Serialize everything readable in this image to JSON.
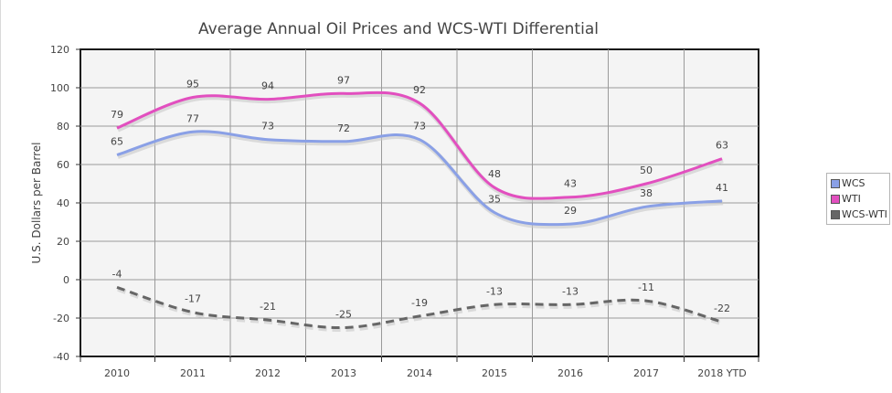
{
  "chart_data": {
    "type": "line",
    "title": "Average Annual Oil Prices and WCS-WTI Differential",
    "xlabel": "",
    "ylabel": "U.S. Dollars per Barrel",
    "categories": [
      "2010",
      "2011",
      "2012",
      "2013",
      "2014",
      "2015",
      "2016",
      "2017",
      "2018 YTD"
    ],
    "yticks": [
      "120",
      "100",
      "80",
      "60",
      "40",
      "20",
      "0",
      "-20",
      "-40"
    ],
    "ylim": [
      -40,
      120
    ],
    "grid": true,
    "legend_position": "right",
    "series": [
      {
        "name": "WCS",
        "values": [
          65,
          77,
          73,
          72,
          73,
          35,
          29,
          38,
          41
        ],
        "labels": [
          "65",
          "77",
          "73",
          "72",
          "73",
          "35",
          "29",
          "38",
          "41"
        ],
        "color": "#8aa0e6",
        "style": "solid"
      },
      {
        "name": "WTI",
        "values": [
          79,
          95,
          94,
          97,
          92,
          48,
          43,
          50,
          63
        ],
        "labels": [
          "79",
          "95",
          "94",
          "97",
          "92",
          "48",
          "43",
          "50",
          "63"
        ],
        "color": "#e24fbf",
        "style": "solid"
      },
      {
        "name": "WCS-WTI",
        "values": [
          -4,
          -17,
          -21,
          -25,
          -19,
          -13,
          -13,
          -11,
          -22
        ],
        "labels": [
          "-4",
          "-17",
          "-21",
          "-25",
          "-19",
          "-13",
          "-13",
          "-11",
          "-22"
        ],
        "color": "#666666",
        "style": "dashed"
      }
    ]
  }
}
